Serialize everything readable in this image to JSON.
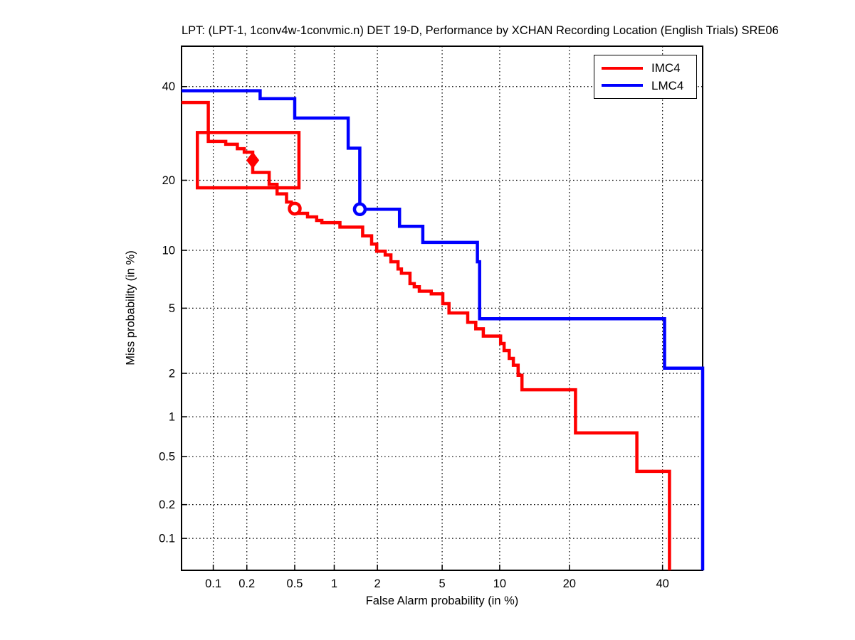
{
  "page": {
    "background": "#ffffff"
  },
  "chart_data": {
    "type": "line",
    "subtype": "det-curve-step",
    "title": "LPT: (LPT-1, 1conv4w-1convmic.n) DET 19-D,  Performance by XCHAN Recording Location (English Trials) SRE06",
    "xlabel": "False Alarm probability (in %)",
    "ylabel": "Miss probability (in %)",
    "scale": "probit",
    "grid": true,
    "xlim_pct": [
      0.05,
      50
    ],
    "ylim_pct": [
      0.05,
      50
    ],
    "x_ticks": {
      "values": [
        0.1,
        0.2,
        0.5,
        1,
        2,
        5,
        10,
        20,
        40
      ],
      "labels": [
        "0.1",
        "0.2",
        "0.5",
        "1",
        "2",
        "5",
        "10",
        "20",
        "40"
      ]
    },
    "y_ticks": {
      "values": [
        0.1,
        0.2,
        0.5,
        1,
        2,
        5,
        10,
        20,
        40
      ],
      "labels": [
        "0.1",
        "0.2",
        "0.5",
        "1",
        "2",
        "5",
        "10",
        "20",
        "40"
      ]
    },
    "legend": {
      "position": "northeast",
      "entries": [
        {
          "label": "IMC4",
          "color": "#ff0000"
        },
        {
          "label": "LMC4",
          "color": "#0000ff"
        }
      ]
    },
    "series": [
      {
        "name": "IMC4",
        "color": "#ff0000",
        "points": [
          [
            0.05,
            36.2
          ],
          [
            0.09,
            36.2
          ],
          [
            0.09,
            27.5
          ],
          [
            0.13,
            27.5
          ],
          [
            0.13,
            26.9
          ],
          [
            0.165,
            26.9
          ],
          [
            0.165,
            26.0
          ],
          [
            0.19,
            26.0
          ],
          [
            0.19,
            25.3
          ],
          [
            0.225,
            25.3
          ],
          [
            0.225,
            21.4
          ],
          [
            0.31,
            21.4
          ],
          [
            0.31,
            19.3
          ],
          [
            0.36,
            19.3
          ],
          [
            0.36,
            17.7
          ],
          [
            0.43,
            17.7
          ],
          [
            0.43,
            16.4
          ],
          [
            0.47,
            16.4
          ],
          [
            0.47,
            15.4
          ],
          [
            0.52,
            15.4
          ],
          [
            0.52,
            14.7
          ],
          [
            0.63,
            14.7
          ],
          [
            0.63,
            14.2
          ],
          [
            0.74,
            14.2
          ],
          [
            0.74,
            13.7
          ],
          [
            0.81,
            13.7
          ],
          [
            0.81,
            13.4
          ],
          [
            1.1,
            13.4
          ],
          [
            1.1,
            12.8
          ],
          [
            1.59,
            12.8
          ],
          [
            1.59,
            11.7
          ],
          [
            1.83,
            11.7
          ],
          [
            1.83,
            10.7
          ],
          [
            1.98,
            10.7
          ],
          [
            1.98,
            9.9
          ],
          [
            2.25,
            9.9
          ],
          [
            2.25,
            9.5
          ],
          [
            2.45,
            9.5
          ],
          [
            2.45,
            8.8
          ],
          [
            2.72,
            8.8
          ],
          [
            2.72,
            8.1
          ],
          [
            2.86,
            8.1
          ],
          [
            2.86,
            7.7
          ],
          [
            3.23,
            7.7
          ],
          [
            3.23,
            6.8
          ],
          [
            3.43,
            6.8
          ],
          [
            3.43,
            6.55
          ],
          [
            3.68,
            6.55
          ],
          [
            3.68,
            6.2
          ],
          [
            4.33,
            6.2
          ],
          [
            4.33,
            6.0
          ],
          [
            5.04,
            6.0
          ],
          [
            5.04,
            5.3
          ],
          [
            5.46,
            5.3
          ],
          [
            5.46,
            4.7
          ],
          [
            6.9,
            4.7
          ],
          [
            6.9,
            4.15
          ],
          [
            7.6,
            4.15
          ],
          [
            7.6,
            3.8
          ],
          [
            8.3,
            3.8
          ],
          [
            8.3,
            3.44
          ],
          [
            10.1,
            3.44
          ],
          [
            10.1,
            3.1
          ],
          [
            10.5,
            3.1
          ],
          [
            10.5,
            2.8
          ],
          [
            11.1,
            2.8
          ],
          [
            11.1,
            2.5
          ],
          [
            11.6,
            2.5
          ],
          [
            11.6,
            2.26
          ],
          [
            12.2,
            2.26
          ],
          [
            12.2,
            1.94
          ],
          [
            12.7,
            1.94
          ],
          [
            12.7,
            1.55
          ],
          [
            21.1,
            1.55
          ],
          [
            21.1,
            0.76
          ],
          [
            33.9,
            0.76
          ],
          [
            33.9,
            0.38
          ],
          [
            41.7,
            0.38
          ],
          [
            41.7,
            0.05
          ]
        ]
      },
      {
        "name": "LMC4",
        "color": "#0000ff",
        "points": [
          [
            0.05,
            39.0
          ],
          [
            0.26,
            39.0
          ],
          [
            0.26,
            37.1
          ],
          [
            0.5,
            37.1
          ],
          [
            0.5,
            32.6
          ],
          [
            1.26,
            32.6
          ],
          [
            1.26,
            26.1
          ],
          [
            1.52,
            26.1
          ],
          [
            1.52,
            15.3
          ],
          [
            2.78,
            15.3
          ],
          [
            2.78,
            12.9
          ],
          [
            3.86,
            12.9
          ],
          [
            3.86,
            10.9
          ],
          [
            7.75,
            10.9
          ],
          [
            7.75,
            8.8
          ],
          [
            7.95,
            8.8
          ],
          [
            7.95,
            4.35
          ],
          [
            40.5,
            4.35
          ],
          [
            40.5,
            2.16
          ],
          [
            50,
            2.16
          ],
          [
            50,
            0.05
          ]
        ]
      }
    ],
    "markers": [
      {
        "series": "IMC4",
        "shape": "diamond-filled",
        "fa_pct": 0.225,
        "miss_pct": 23.7,
        "color": "#ff0000"
      },
      {
        "series": "IMC4",
        "shape": "circle-open",
        "fa_pct": 0.5,
        "miss_pct": 15.4,
        "color": "#ff0000"
      },
      {
        "series": "LMC4",
        "shape": "circle-open",
        "fa_pct": 1.52,
        "miss_pct": 15.3,
        "color": "#0000ff"
      }
    ],
    "highlight_box": {
      "color": "#ff0000",
      "fa_pct_min": 0.071,
      "fa_pct_max": 0.54,
      "miss_pct_min": 18.7,
      "miss_pct_max": 29.4
    }
  }
}
